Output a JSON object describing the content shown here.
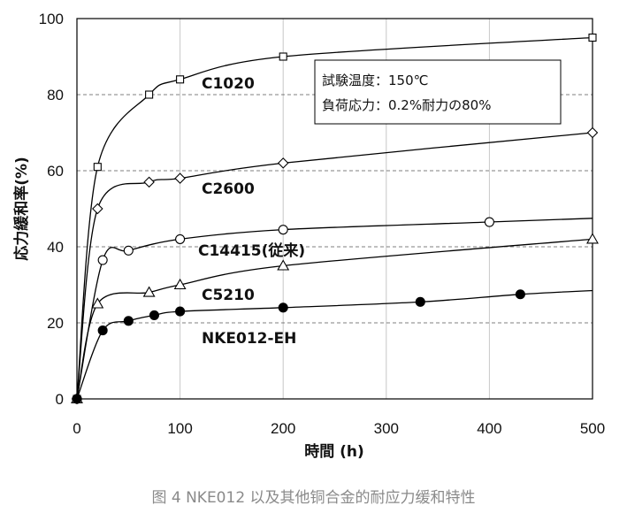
{
  "chart_data": {
    "type": "line",
    "xlabel": "時間 (h)",
    "ylabel": "応力緩和率(%)",
    "xlim": [
      0,
      500
    ],
    "ylim": [
      0,
      100
    ],
    "x_ticks": [
      "0",
      "100",
      "200",
      "300",
      "400",
      "500"
    ],
    "y_ticks": [
      "0",
      "20",
      "40",
      "60",
      "80",
      "100"
    ],
    "grid": "vertical solid at x ticks, horizontal dashed at y ticks",
    "conditions": [
      "試験温度：150℃",
      "負荷応力：0.2%耐力の80%"
    ],
    "series": [
      {
        "name": "C1020",
        "marker": "square",
        "filled": false,
        "points": [
          [
            0,
            0
          ],
          [
            20,
            61
          ],
          [
            70,
            80
          ],
          [
            100,
            84
          ],
          [
            200,
            90
          ],
          [
            500,
            95
          ]
        ],
        "curve_end": [
          500,
          95
        ]
      },
      {
        "name": "C2600",
        "marker": "diamond",
        "filled": false,
        "points": [
          [
            0,
            0
          ],
          [
            20,
            50
          ],
          [
            70,
            57
          ],
          [
            100,
            58
          ],
          [
            200,
            62
          ],
          [
            500,
            70
          ]
        ],
        "curve_end": [
          500,
          70
        ]
      },
      {
        "name": "C14415(従来)",
        "marker": "circle",
        "filled": false,
        "points": [
          [
            0,
            0
          ],
          [
            25,
            36.5
          ],
          [
            50,
            39
          ],
          [
            100,
            42
          ],
          [
            200,
            44.5
          ],
          [
            400,
            46.5
          ]
        ],
        "curve_end": [
          500,
          47.5
        ]
      },
      {
        "name": "C5210",
        "marker": "triangle",
        "filled": false,
        "points": [
          [
            0,
            0
          ],
          [
            20,
            25
          ],
          [
            70,
            28
          ],
          [
            100,
            30
          ],
          [
            200,
            35
          ],
          [
            500,
            42
          ]
        ],
        "curve_end": [
          500,
          42
        ]
      },
      {
        "name": "NKE012-EH",
        "marker": "circle",
        "filled": true,
        "points": [
          [
            0,
            0
          ],
          [
            25,
            18
          ],
          [
            50,
            20.5
          ],
          [
            75,
            22
          ],
          [
            100,
            23
          ],
          [
            200,
            24
          ],
          [
            333,
            25.5
          ],
          [
            430,
            27.5
          ]
        ],
        "curve_end": [
          500,
          28.5
        ]
      }
    ]
  },
  "caption": "图 4 NKE012 以及其他铜合金的耐应力缓和特性"
}
